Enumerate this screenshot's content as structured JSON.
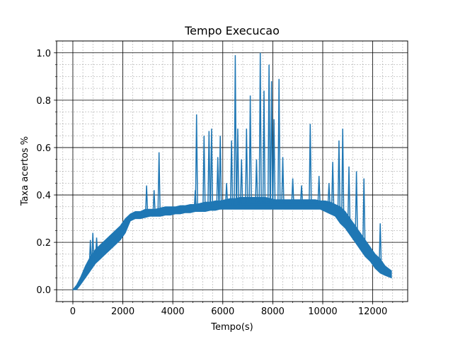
{
  "chart_data": {
    "type": "line",
    "title": "Tempo Execucao",
    "xlabel": "Tempo(s)",
    "ylabel": "Taxa acertos %",
    "xlim": [
      -650,
      13400
    ],
    "ylim": [
      -0.05,
      1.05
    ],
    "xticks": [
      0,
      2000,
      4000,
      6000,
      8000,
      10000,
      12000
    ],
    "xtick_labels": [
      "0",
      "2000",
      "4000",
      "6000",
      "8000",
      "10000",
      "12000"
    ],
    "yticks": [
      0.0,
      0.2,
      0.4,
      0.6,
      0.8,
      1.0
    ],
    "ytick_labels": [
      "0.0",
      "0.2",
      "0.4",
      "0.6",
      "0.8",
      "1.0"
    ],
    "x_minor_step": 400,
    "y_minor_step": 0.05,
    "grid": {
      "major": true,
      "minor": true
    },
    "line_color": "#1f77b4",
    "series": [
      {
        "name": "Taxa acertos",
        "x": [
          0,
          150,
          300,
          500,
          700,
          900,
          1100,
          1300,
          1500,
          1700,
          1900,
          2100,
          2300,
          2500,
          2700,
          2900,
          3100,
          3300,
          3500,
          3700,
          3900,
          4100,
          4300,
          4500,
          4700,
          4900,
          5100,
          5300,
          5500,
          5700,
          5900,
          6100,
          6300,
          6500,
          6700,
          6900,
          7100,
          7300,
          7500,
          7700,
          7900,
          8100,
          8300,
          8500,
          8700,
          8900,
          9100,
          9300,
          9500,
          9700,
          9900,
          10100,
          10300,
          10500,
          10700,
          10900,
          11100,
          11300,
          11500,
          11700,
          11900,
          12100,
          12300,
          12500,
          12750
        ],
        "values": [
          0.0,
          0.01,
          0.03,
          0.07,
          0.1,
          0.13,
          0.16,
          0.18,
          0.2,
          0.22,
          0.24,
          0.27,
          0.3,
          0.31,
          0.31,
          0.315,
          0.32,
          0.32,
          0.325,
          0.325,
          0.33,
          0.33,
          0.335,
          0.335,
          0.34,
          0.34,
          0.345,
          0.345,
          0.35,
          0.35,
          0.35,
          0.355,
          0.355,
          0.355,
          0.36,
          0.36,
          0.36,
          0.36,
          0.36,
          0.36,
          0.36,
          0.36,
          0.36,
          0.36,
          0.36,
          0.36,
          0.36,
          0.36,
          0.36,
          0.36,
          0.36,
          0.355,
          0.35,
          0.34,
          0.32,
          0.3,
          0.27,
          0.24,
          0.21,
          0.18,
          0.15,
          0.12,
          0.1,
          0.08,
          0.06
        ],
        "band_low": [
          0.0,
          0.0,
          0.02,
          0.05,
          0.08,
          0.11,
          0.13,
          0.15,
          0.17,
          0.19,
          0.21,
          0.24,
          0.29,
          0.3,
          0.3,
          0.305,
          0.31,
          0.31,
          0.31,
          0.315,
          0.315,
          0.32,
          0.32,
          0.325,
          0.325,
          0.33,
          0.33,
          0.33,
          0.335,
          0.335,
          0.34,
          0.34,
          0.34,
          0.34,
          0.34,
          0.34,
          0.34,
          0.34,
          0.34,
          0.34,
          0.34,
          0.34,
          0.34,
          0.34,
          0.34,
          0.34,
          0.34,
          0.34,
          0.34,
          0.34,
          0.34,
          0.33,
          0.32,
          0.31,
          0.28,
          0.26,
          0.23,
          0.2,
          0.17,
          0.14,
          0.12,
          0.09,
          0.07,
          0.06,
          0.05
        ],
        "band_high": [
          0.0,
          0.02,
          0.05,
          0.1,
          0.14,
          0.17,
          0.19,
          0.21,
          0.23,
          0.25,
          0.27,
          0.3,
          0.32,
          0.33,
          0.33,
          0.34,
          0.34,
          0.34,
          0.345,
          0.35,
          0.35,
          0.35,
          0.355,
          0.355,
          0.36,
          0.36,
          0.365,
          0.37,
          0.37,
          0.375,
          0.375,
          0.38,
          0.385,
          0.385,
          0.39,
          0.39,
          0.39,
          0.39,
          0.39,
          0.39,
          0.385,
          0.38,
          0.38,
          0.38,
          0.38,
          0.38,
          0.38,
          0.38,
          0.38,
          0.38,
          0.375,
          0.375,
          0.37,
          0.36,
          0.35,
          0.33,
          0.3,
          0.27,
          0.24,
          0.21,
          0.18,
          0.15,
          0.13,
          0.1,
          0.08
        ]
      }
    ],
    "spikes": [
      {
        "x": 700,
        "y": 0.21
      },
      {
        "x": 800,
        "y": 0.24
      },
      {
        "x": 950,
        "y": 0.22
      },
      {
        "x": 2950,
        "y": 0.44
      },
      {
        "x": 3250,
        "y": 0.42
      },
      {
        "x": 3450,
        "y": 0.58
      },
      {
        "x": 4900,
        "y": 0.42
      },
      {
        "x": 4950,
        "y": 0.74
      },
      {
        "x": 5250,
        "y": 0.65
      },
      {
        "x": 5450,
        "y": 0.67
      },
      {
        "x": 5550,
        "y": 0.68
      },
      {
        "x": 5800,
        "y": 0.56
      },
      {
        "x": 5900,
        "y": 0.65
      },
      {
        "x": 6150,
        "y": 0.45
      },
      {
        "x": 6350,
        "y": 0.63
      },
      {
        "x": 6500,
        "y": 0.99
      },
      {
        "x": 6600,
        "y": 0.68
      },
      {
        "x": 6750,
        "y": 0.55
      },
      {
        "x": 6950,
        "y": 0.68
      },
      {
        "x": 7100,
        "y": 0.82
      },
      {
        "x": 7350,
        "y": 0.55
      },
      {
        "x": 7500,
        "y": 1.0
      },
      {
        "x": 7650,
        "y": 0.84
      },
      {
        "x": 7850,
        "y": 0.95
      },
      {
        "x": 7950,
        "y": 0.88
      },
      {
        "x": 8050,
        "y": 0.72
      },
      {
        "x": 8250,
        "y": 0.89
      },
      {
        "x": 8400,
        "y": 0.56
      },
      {
        "x": 8800,
        "y": 0.47
      },
      {
        "x": 9150,
        "y": 0.44
      },
      {
        "x": 9500,
        "y": 0.7
      },
      {
        "x": 9850,
        "y": 0.48
      },
      {
        "x": 10250,
        "y": 0.45
      },
      {
        "x": 10400,
        "y": 0.54
      },
      {
        "x": 10650,
        "y": 0.63
      },
      {
        "x": 10800,
        "y": 0.68
      },
      {
        "x": 11050,
        "y": 0.52
      },
      {
        "x": 11350,
        "y": 0.5
      },
      {
        "x": 11650,
        "y": 0.47
      },
      {
        "x": 12300,
        "y": 0.28
      }
    ]
  }
}
